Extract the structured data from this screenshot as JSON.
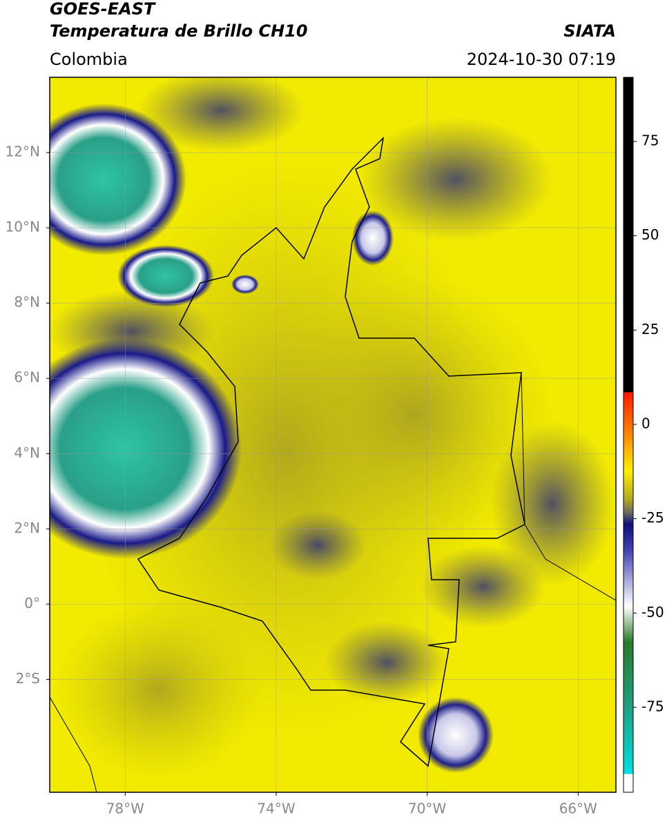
{
  "header": {
    "satellite": "GOES-EAST",
    "product": "Temperatura de Brillo CH10",
    "source": "SIATA",
    "region": "Colombia",
    "datetime": "2024-10-30 07:19"
  },
  "map": {
    "xlim": [
      -80,
      -65
    ],
    "ylim": [
      -5,
      14
    ],
    "xticks": [
      {
        "value": -78,
        "label": "78°W"
      },
      {
        "value": -74,
        "label": "74°W"
      },
      {
        "value": -70,
        "label": "70°W"
      },
      {
        "value": -66,
        "label": "66°W"
      }
    ],
    "yticks": [
      {
        "value": 12,
        "label": "12°N"
      },
      {
        "value": 10,
        "label": "10°N"
      },
      {
        "value": 8,
        "label": "8°N"
      },
      {
        "value": 6,
        "label": "6°N"
      },
      {
        "value": 4,
        "label": "4°N"
      },
      {
        "value": 2,
        "label": "2°N"
      },
      {
        "value": 0,
        "label": "0°"
      },
      {
        "value": -2,
        "label": "2°S"
      }
    ],
    "grid": true
  },
  "colorbar": {
    "lim": [
      -97.5,
      92
    ],
    "ticks": [
      75,
      50,
      25,
      0,
      -25,
      -50,
      -75
    ]
  }
}
